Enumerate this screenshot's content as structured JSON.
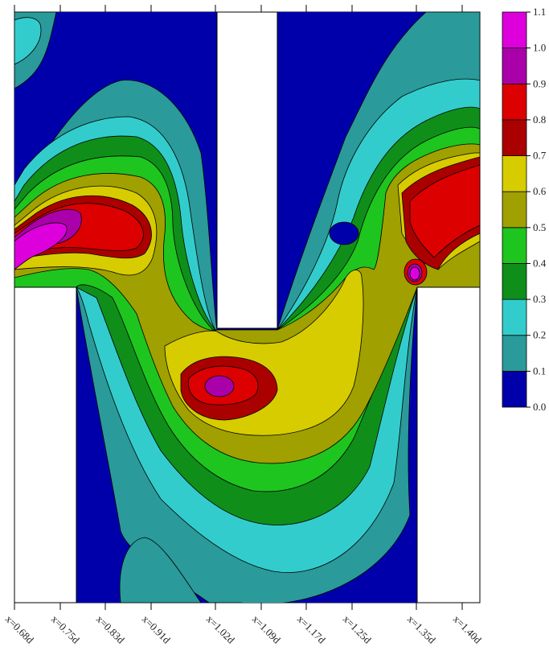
{
  "chart_data": {
    "type": "heatmap",
    "title": "",
    "xlabel": "",
    "ylabel": "",
    "x_tick_labels": [
      "x=0.68d",
      "x=0.75d",
      "x=0.83d",
      "x=0.91d",
      "x=1.02d",
      "x=1.09d",
      "x=1.17d",
      "x=1.25d",
      "x=1.35d",
      "x=1.40d"
    ],
    "colorbar": {
      "ticks": [
        "0.0",
        "0.1",
        "0.2",
        "0.3",
        "0.4",
        "0.5",
        "0.6",
        "0.7",
        "0.8",
        "0.9",
        "1.0",
        "1.1"
      ],
      "levels": [
        {
          "min": 0.0,
          "max": 0.1,
          "color": "#0000aa"
        },
        {
          "min": 0.1,
          "max": 0.2,
          "color": "#2a9a9a"
        },
        {
          "min": 0.2,
          "max": 0.3,
          "color": "#33cccc"
        },
        {
          "min": 0.3,
          "max": 0.4,
          "color": "#0f8f1a"
        },
        {
          "min": 0.4,
          "max": 0.5,
          "color": "#1ec51e"
        },
        {
          "min": 0.5,
          "max": 0.6,
          "color": "#a0a000"
        },
        {
          "min": 0.6,
          "max": 0.7,
          "color": "#d6cc00"
        },
        {
          "min": 0.7,
          "max": 0.8,
          "color": "#aa0000"
        },
        {
          "min": 0.8,
          "max": 0.9,
          "color": "#dd0000"
        },
        {
          "min": 0.9,
          "max": 1.0,
          "color": "#aa00aa"
        },
        {
          "min": 1.0,
          "max": 1.1,
          "color": "#dd00dd"
        }
      ]
    },
    "peaks": [
      {
        "location": "left upper channel",
        "value": 1.05
      },
      {
        "location": "center lower cavity",
        "value": 0.95
      },
      {
        "location": "right channel corner",
        "value": 1.05
      }
    ]
  }
}
